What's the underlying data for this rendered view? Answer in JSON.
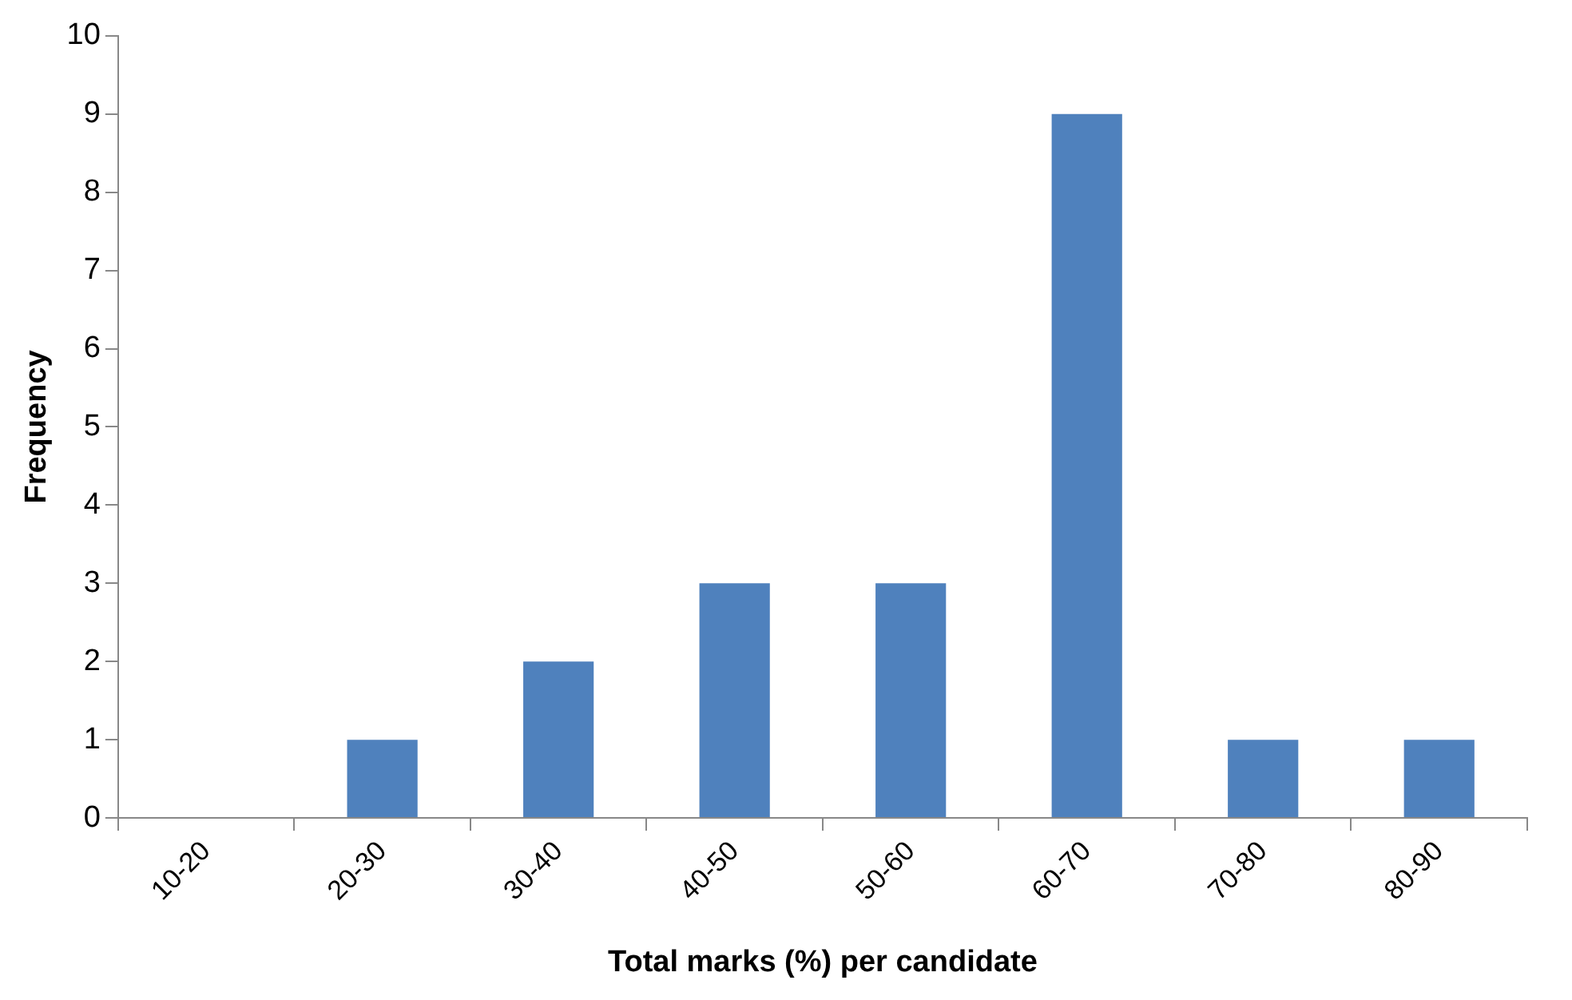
{
  "chart_data": {
    "type": "bar",
    "xlabel": "Total marks (%) per candidate",
    "ylabel": "Frequency",
    "categories": [
      "10-20",
      "20-30",
      "30-40",
      "40-50",
      "50-60",
      "60-70",
      "70-80",
      "80-90"
    ],
    "values": [
      0,
      1,
      2,
      3,
      3,
      9,
      1,
      1
    ],
    "color": "#4f81bd",
    "ylim": [
      0,
      10
    ],
    "yticks": [
      0,
      1,
      2,
      3,
      4,
      5,
      6,
      7,
      8,
      9,
      10
    ],
    "grid": false,
    "legend": false
  }
}
